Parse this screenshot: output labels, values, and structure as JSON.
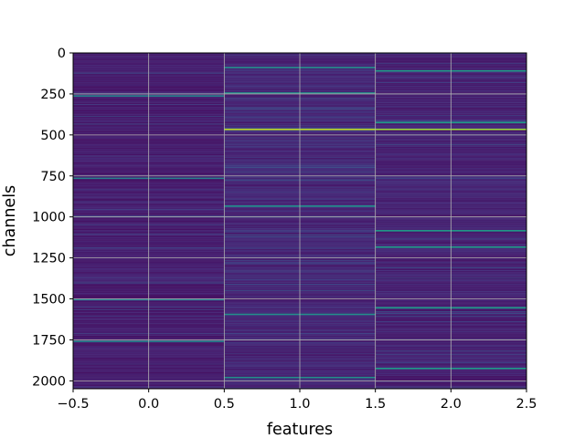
{
  "chart_data": {
    "type": "heatmap",
    "title": "",
    "xlabel": "features",
    "ylabel": "channels",
    "xlim": [
      -0.5,
      2.5
    ],
    "ylim": [
      2048,
      0
    ],
    "x_ticks": [
      -0.5,
      0.0,
      0.5,
      1.0,
      1.5,
      2.0,
      2.5
    ],
    "x_tick_labels": [
      "−0.5",
      "0.0",
      "0.5",
      "1.0",
      "1.5",
      "2.0",
      "2.5"
    ],
    "y_ticks": [
      0,
      250,
      500,
      750,
      1000,
      1250,
      1500,
      1750,
      2000
    ],
    "y_tick_labels": [
      "0",
      "250",
      "500",
      "750",
      "1000",
      "1250",
      "1500",
      "1750",
      "2000"
    ],
    "grid": true,
    "colormap": "viridis",
    "columns": [
      0,
      1,
      2
    ],
    "n_rows": 2048,
    "colormap_stops": [
      "#440154",
      "#482878",
      "#3e4989",
      "#31688e",
      "#26828e",
      "#1f9e89",
      "#35b779",
      "#6ece58",
      "#b5de2b",
      "#fde725"
    ],
    "grid_color": "#b0b0b0",
    "highlights": [
      {
        "column": 0,
        "rows": [
          258,
          760,
          1500,
          1755
        ],
        "level": 0.45
      },
      {
        "column": 1,
        "rows": [
          85,
          240,
          930,
          1590,
          1975
        ],
        "level": 0.5
      },
      {
        "column": 1,
        "rows": [
          462
        ],
        "level": 0.9
      },
      {
        "column": 2,
        "rows": [
          105,
          420,
          1080,
          1180,
          1550,
          1920
        ],
        "level": 0.55
      },
      {
        "column": 2,
        "rows": [
          462
        ],
        "level": 0.85
      }
    ]
  }
}
